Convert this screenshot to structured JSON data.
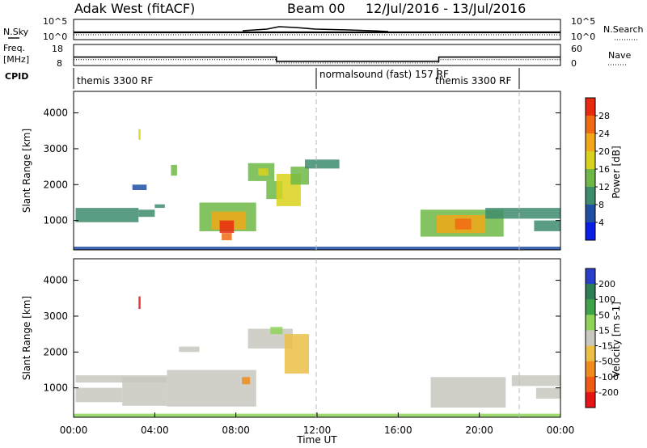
{
  "header": {
    "station": "Adak West (fitACF)",
    "beam": "Beam 00",
    "date_range": "12/Jul/2016 - 13/Jul/2016"
  },
  "chart_data": [
    {
      "type": "line",
      "panel": "noise",
      "left_label": "N.Sky",
      "right_label": "N.Search",
      "left_ticks": [
        "10^5",
        "10^0"
      ],
      "right_ticks": [
        "10^5",
        "10^0"
      ],
      "yscale": "log",
      "ylim": [
        1,
        100000
      ]
    },
    {
      "type": "line",
      "panel": "frequency",
      "left_label": "Freq.",
      "left_unit": "[MHz]",
      "left_ticks": [
        "18",
        "8"
      ],
      "right_label": "Nave",
      "right_ticks": [
        "60",
        "0"
      ],
      "ylim": [
        8,
        18
      ],
      "series": [
        {
          "name": "Freq.",
          "style": "solid",
          "points": [
            [
              0,
              12.0
            ],
            [
              10,
              12.0
            ],
            [
              10,
              10.0
            ],
            [
              18,
              10.0
            ],
            [
              18,
              12.0
            ],
            [
              24,
              12.0
            ]
          ]
        },
        {
          "name": "Nave",
          "style": "dotted",
          "points": [
            [
              0,
              10.8
            ],
            [
              10,
              10.8
            ],
            [
              10,
              9.2
            ],
            [
              18,
              9.2
            ],
            [
              18,
              10.8
            ],
            [
              24,
              10.8
            ]
          ]
        }
      ]
    },
    {
      "type": "table",
      "panel": "cpid",
      "label": "CPID",
      "segments": [
        {
          "name": "themis 3300 RF",
          "start": 0,
          "end": 12
        },
        {
          "name": "normalsound (fast) 157 RF",
          "start": 12,
          "end": 22
        },
        {
          "name": "themis 3300 RF",
          "start": 18,
          "end": 22
        }
      ]
    },
    {
      "type": "heatmap",
      "panel": "power",
      "ylabel": "Slant Range [km]",
      "yticks": [
        1000,
        2000,
        3000,
        4000
      ],
      "ylim": [
        180,
        4600
      ],
      "colorbar": {
        "label": "Power [dB]",
        "ticks": [
          4,
          8,
          12,
          16,
          20,
          24,
          28
        ],
        "colors": [
          "#0a1ee6",
          "#1f4fa3",
          "#3e8c6c",
          "#6fb847",
          "#d9d21c",
          "#f0a818",
          "#f06a14",
          "#e82a10"
        ]
      },
      "patches": [
        {
          "t0": 0.1,
          "t1": 3.2,
          "r0": 950,
          "r1": 1350,
          "level": 2
        },
        {
          "t0": 3.2,
          "t1": 4.0,
          "r0": 1100,
          "r1": 1300,
          "level": 2
        },
        {
          "t0": 4.0,
          "t1": 4.5,
          "r0": 1350,
          "r1": 1450,
          "level": 2
        },
        {
          "t0": 6.2,
          "t1": 9.0,
          "r0": 700,
          "r1": 1500,
          "level": 3
        },
        {
          "t0": 6.8,
          "t1": 8.5,
          "r0": 750,
          "r1": 1250,
          "level": 5
        },
        {
          "t0": 7.2,
          "t1": 7.9,
          "r0": 650,
          "r1": 1000,
          "level": 7
        },
        {
          "t0": 7.3,
          "t1": 7.8,
          "r0": 450,
          "r1": 650,
          "level": 6
        },
        {
          "t0": 8.6,
          "t1": 9.9,
          "r0": 2100,
          "r1": 2600,
          "level": 3
        },
        {
          "t0": 9.1,
          "t1": 9.6,
          "r0": 2250,
          "r1": 2450,
          "level": 4
        },
        {
          "t0": 9.5,
          "t1": 10.3,
          "r0": 1600,
          "r1": 2100,
          "level": 3
        },
        {
          "t0": 10.0,
          "t1": 11.2,
          "r0": 1400,
          "r1": 2300,
          "level": 4
        },
        {
          "t0": 10.7,
          "t1": 11.6,
          "r0": 2000,
          "r1": 2500,
          "level": 3
        },
        {
          "t0": 11.4,
          "t1": 13.1,
          "r0": 2450,
          "r1": 2700,
          "level": 2
        },
        {
          "t0": 17.1,
          "t1": 21.2,
          "r0": 550,
          "r1": 1300,
          "level": 3
        },
        {
          "t0": 17.9,
          "t1": 20.3,
          "r0": 650,
          "r1": 1150,
          "level": 5
        },
        {
          "t0": 18.8,
          "t1": 19.6,
          "r0": 750,
          "r1": 1050,
          "level": 6
        },
        {
          "t0": 20.3,
          "t1": 24.0,
          "r0": 1050,
          "r1": 1350,
          "level": 2
        },
        {
          "t0": 22.7,
          "t1": 24.0,
          "r0": 700,
          "r1": 1000,
          "level": 2
        },
        {
          "t0": 3.2,
          "t1": 3.3,
          "r0": 3250,
          "r1": 3550,
          "level": 4
        },
        {
          "t0": 4.8,
          "t1": 5.1,
          "r0": 2250,
          "r1": 2550,
          "level": 3
        },
        {
          "t0": 2.9,
          "t1": 3.6,
          "r0": 1850,
          "r1": 2000,
          "level": 1
        },
        {
          "t0": 0.0,
          "t1": 24.0,
          "r0": 180,
          "r1": 270,
          "level": 1
        }
      ]
    },
    {
      "type": "heatmap",
      "panel": "velocity",
      "ylabel": "Slant Range [km]",
      "xlabel": "Time UT",
      "xticks": [
        "00:00",
        "04:00",
        "08:00",
        "12:00",
        "16:00",
        "20:00",
        "00:00"
      ],
      "yticks": [
        1000,
        2000,
        3000,
        4000
      ],
      "ylim": [
        180,
        4600
      ],
      "colorbar": {
        "label": "Velocity [m s-1]",
        "ticks": [
          200,
          100,
          50,
          15,
          -15,
          -50,
          -100,
          -200
        ],
        "colors": [
          "#2a3fc8",
          "#2e7d54",
          "#3fa34a",
          "#8fd35a",
          "#c8c8c0",
          "#ebc046",
          "#f08c1c",
          "#f05a14",
          "#e61414"
        ]
      },
      "patches": [
        {
          "t0": 0.1,
          "t1": 4.6,
          "r0": 1150,
          "r1": 1350,
          "level": 4
        },
        {
          "t0": 0.1,
          "t1": 2.4,
          "r0": 600,
          "r1": 1000,
          "level": 4
        },
        {
          "t0": 2.4,
          "t1": 4.6,
          "r0": 500,
          "r1": 1300,
          "level": 4
        },
        {
          "t0": 4.6,
          "t1": 9.0,
          "r0": 480,
          "r1": 1500,
          "level": 4
        },
        {
          "t0": 5.2,
          "t1": 6.2,
          "r0": 2000,
          "r1": 2150,
          "level": 4
        },
        {
          "t0": 8.6,
          "t1": 10.8,
          "r0": 2100,
          "r1": 2650,
          "level": 4
        },
        {
          "t0": 10.4,
          "t1": 11.6,
          "r0": 1400,
          "r1": 2500,
          "level": 5
        },
        {
          "t0": 9.7,
          "t1": 10.3,
          "r0": 2500,
          "r1": 2700,
          "level": 3
        },
        {
          "t0": 8.3,
          "t1": 8.7,
          "r0": 1100,
          "r1": 1300,
          "level": 6
        },
        {
          "t0": 17.6,
          "t1": 21.3,
          "r0": 450,
          "r1": 1300,
          "level": 4
        },
        {
          "t0": 21.6,
          "t1": 24.0,
          "r0": 1050,
          "r1": 1350,
          "level": 4
        },
        {
          "t0": 22.8,
          "t1": 24.0,
          "r0": 700,
          "r1": 1000,
          "level": 4
        },
        {
          "t0": 3.2,
          "t1": 3.3,
          "r0": 3200,
          "r1": 3550,
          "level": 8
        },
        {
          "t0": 0.0,
          "t1": 24.0,
          "r0": 180,
          "r1": 280,
          "level": 3
        }
      ]
    }
  ]
}
